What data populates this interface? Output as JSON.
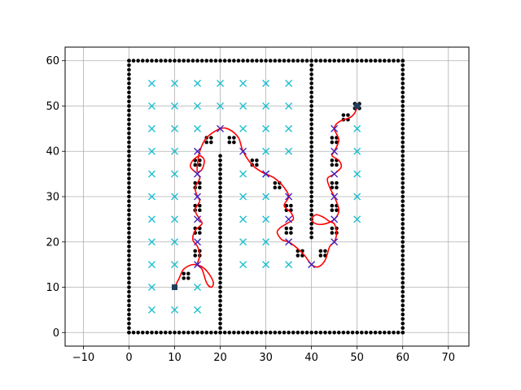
{
  "chart_data": {
    "type": "scatter",
    "title": "",
    "xlabel": "",
    "ylabel": "",
    "xlim": [
      -14,
      74.5
    ],
    "ylim": [
      -3,
      63
    ],
    "grid": true,
    "x_ticks": [
      -10,
      0,
      10,
      20,
      30,
      40,
      50,
      60,
      70
    ],
    "y_ticks": [
      0,
      10,
      20,
      30,
      40,
      50,
      60
    ],
    "x_tick_labels": [
      "−10",
      "0",
      "10",
      "20",
      "30",
      "40",
      "50",
      "60",
      "70"
    ],
    "y_tick_labels": [
      "0",
      "10",
      "20",
      "30",
      "40",
      "50",
      "60"
    ],
    "obstacles": {
      "color": "#000000",
      "walls": [
        {
          "axis": "y",
          "at": 0,
          "from": 0,
          "to": 60
        },
        {
          "axis": "y",
          "at": 60,
          "from": 0,
          "to": 60
        },
        {
          "axis": "x",
          "at": 0,
          "from": 0,
          "to": 60
        },
        {
          "axis": "x",
          "at": 60,
          "from": 0,
          "to": 60
        },
        {
          "axis": "x",
          "at": 20,
          "from": 0,
          "to": 39
        },
        {
          "axis": "x",
          "at": 40,
          "from": 21,
          "to": 60
        }
      ],
      "clusters": [
        [
          12.5,
          12.5
        ],
        [
          15,
          17.5
        ],
        [
          15,
          22.5
        ],
        [
          15,
          27.5
        ],
        [
          15,
          32.5
        ],
        [
          15,
          37.5
        ],
        [
          17.5,
          42.5
        ],
        [
          22.5,
          42.5
        ],
        [
          27.5,
          37.5
        ],
        [
          32.5,
          32.5
        ],
        [
          35,
          27.5
        ],
        [
          35,
          22.5
        ],
        [
          37.5,
          17.5
        ],
        [
          42.5,
          17.5
        ],
        [
          45,
          22.5
        ],
        [
          45,
          27.5
        ],
        [
          45,
          32.5
        ],
        [
          45,
          37.5
        ],
        [
          45,
          42.5
        ],
        [
          47.5,
          47.5
        ],
        [
          50,
          50
        ]
      ]
    },
    "candidate_points": {
      "color": "#17becf",
      "points": [
        [
          5,
          55
        ],
        [
          10,
          55
        ],
        [
          15,
          55
        ],
        [
          20,
          55
        ],
        [
          25,
          55
        ],
        [
          30,
          55
        ],
        [
          35,
          55
        ],
        [
          5,
          50
        ],
        [
          10,
          50
        ],
        [
          15,
          50
        ],
        [
          20,
          50
        ],
        [
          25,
          50
        ],
        [
          30,
          50
        ],
        [
          35,
          50
        ],
        [
          5,
          45
        ],
        [
          10,
          45
        ],
        [
          15,
          45
        ],
        [
          25,
          45
        ],
        [
          30,
          45
        ],
        [
          35,
          45
        ],
        [
          5,
          40
        ],
        [
          10,
          40
        ],
        [
          30,
          40
        ],
        [
          35,
          40
        ],
        [
          5,
          35
        ],
        [
          10,
          35
        ],
        [
          25,
          35
        ],
        [
          30,
          35
        ],
        [
          5,
          30
        ],
        [
          10,
          30
        ],
        [
          25,
          30
        ],
        [
          30,
          30
        ],
        [
          5,
          25
        ],
        [
          10,
          25
        ],
        [
          25,
          25
        ],
        [
          30,
          25
        ],
        [
          5,
          20
        ],
        [
          10,
          20
        ],
        [
          25,
          20
        ],
        [
          30,
          20
        ],
        [
          5,
          15
        ],
        [
          10,
          15
        ],
        [
          25,
          15
        ],
        [
          30,
          15
        ],
        [
          35,
          15
        ],
        [
          5,
          10
        ],
        [
          15,
          10
        ],
        [
          5,
          5
        ],
        [
          10,
          5
        ],
        [
          15,
          5
        ],
        [
          50,
          45
        ],
        [
          50,
          40
        ],
        [
          50,
          35
        ],
        [
          50,
          30
        ],
        [
          50,
          25
        ]
      ]
    },
    "waypoints": {
      "color": "#3b1fbf",
      "points": [
        [
          15,
          15
        ],
        [
          15,
          20
        ],
        [
          15,
          25
        ],
        [
          15,
          30
        ],
        [
          15,
          35
        ],
        [
          15,
          40
        ],
        [
          20,
          45
        ],
        [
          25,
          40
        ],
        [
          30,
          35
        ],
        [
          35,
          30
        ],
        [
          35,
          25
        ],
        [
          35,
          20
        ],
        [
          40,
          15
        ],
        [
          45,
          20
        ],
        [
          45,
          25
        ],
        [
          45,
          30
        ],
        [
          45,
          35
        ],
        [
          45,
          40
        ],
        [
          45,
          45
        ]
      ]
    },
    "path": {
      "color": "#ff0000",
      "points": [
        [
          10,
          10
        ],
        [
          11,
          12
        ],
        [
          12,
          14
        ],
        [
          14,
          15
        ],
        [
          16,
          14.5
        ],
        [
          17.5,
          13
        ],
        [
          18.5,
          11
        ],
        [
          18,
          10
        ],
        [
          17,
          11
        ],
        [
          16,
          14
        ],
        [
          15,
          15
        ],
        [
          15.5,
          17
        ],
        [
          15,
          19
        ],
        [
          14,
          20.5
        ],
        [
          14.5,
          22.5
        ],
        [
          16,
          24
        ],
        [
          15.5,
          25
        ],
        [
          14.5,
          27
        ],
        [
          15.5,
          29
        ],
        [
          15,
          30
        ],
        [
          14.5,
          32
        ],
        [
          15.5,
          34
        ],
        [
          15,
          35
        ],
        [
          13.5,
          36.5
        ],
        [
          14,
          38
        ],
        [
          15.5,
          39
        ],
        [
          16.5,
          38
        ],
        [
          16,
          36
        ],
        [
          15,
          35.5
        ],
        [
          15,
          37
        ],
        [
          15.5,
          40
        ],
        [
          17,
          43
        ],
        [
          20,
          45
        ],
        [
          22,
          44.8
        ],
        [
          24,
          43
        ],
        [
          25,
          40
        ],
        [
          27,
          37
        ],
        [
          29,
          35.5
        ],
        [
          30,
          35
        ],
        [
          32,
          34
        ],
        [
          34,
          32
        ],
        [
          35,
          30
        ],
        [
          34,
          28
        ],
        [
          35.5,
          26.5
        ],
        [
          36,
          25
        ],
        [
          34.5,
          24
        ],
        [
          33,
          23
        ],
        [
          32.5,
          22
        ],
        [
          33.5,
          20.5
        ],
        [
          35,
          20
        ],
        [
          37,
          18.5
        ],
        [
          38.5,
          17
        ],
        [
          40,
          15
        ],
        [
          41.5,
          14.5
        ],
        [
          43,
          16
        ],
        [
          44,
          19
        ],
        [
          45,
          20
        ],
        [
          45.5,
          22
        ],
        [
          45,
          24
        ],
        [
          44,
          24.5
        ],
        [
          42.5,
          25.5
        ],
        [
          41,
          26
        ],
        [
          40,
          25
        ],
        [
          41,
          24
        ],
        [
          43,
          24
        ],
        [
          45,
          25
        ],
        [
          46,
          27
        ],
        [
          45,
          30
        ],
        [
          44,
          32
        ],
        [
          43.5,
          34
        ],
        [
          45,
          35
        ],
        [
          46.5,
          36.5
        ],
        [
          46,
          38
        ],
        [
          44.5,
          39
        ],
        [
          45,
          40
        ],
        [
          46,
          42.5
        ],
        [
          45,
          45
        ],
        [
          46,
          46.5
        ],
        [
          48.5,
          47.5
        ],
        [
          49.5,
          48.5
        ],
        [
          50,
          50
        ]
      ]
    },
    "start": {
      "x": 10,
      "y": 10,
      "color": "#1f3f5f"
    },
    "goal": {
      "x": 50,
      "y": 50,
      "color": "#1f3f5f"
    }
  }
}
